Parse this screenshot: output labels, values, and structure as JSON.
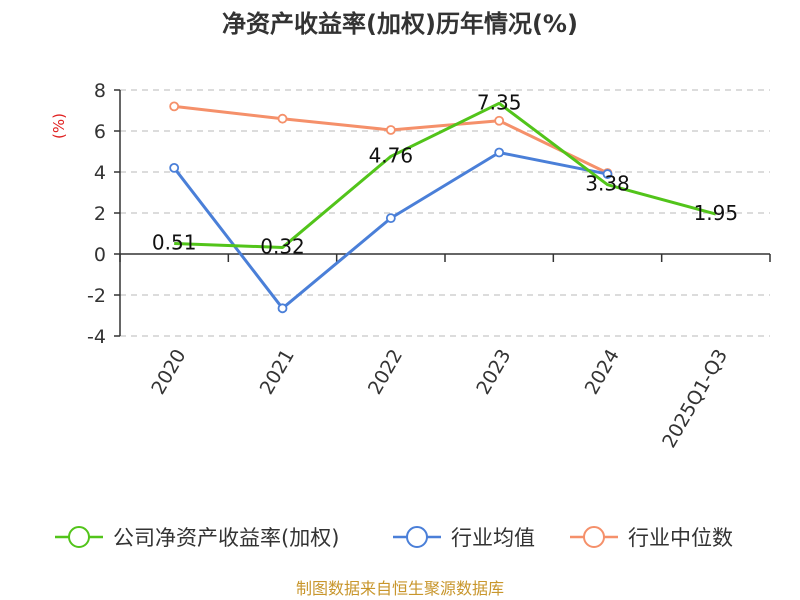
{
  "chart_data": {
    "type": "line",
    "title": "净资产收益率(加权)历年情况(%)",
    "ylabel": "(%)",
    "xlabel": "",
    "categories": [
      "2020",
      "2021",
      "2022",
      "2023",
      "2024",
      "2025Q1-Q3"
    ],
    "y_ticks": [
      "8",
      "6",
      "4",
      "2",
      "0",
      "-2",
      "-4"
    ],
    "ylim": [
      -4,
      8
    ],
    "grid": true,
    "legend_position": "bottom",
    "series": [
      {
        "name": "公司净资产收益率(加权)",
        "color": "#52c41a",
        "values": [
          0.51,
          0.32,
          4.76,
          7.35,
          3.38,
          1.95
        ],
        "labels": [
          "0.51",
          "0.32",
          "4.76",
          "7.35",
          "3.38",
          "1.95"
        ]
      },
      {
        "name": "行业均值",
        "color": "#4a7fd8",
        "values": [
          4.2,
          -2.65,
          1.75,
          4.95,
          3.9,
          null
        ]
      },
      {
        "name": "行业中位数",
        "color": "#f5906a",
        "values": [
          7.2,
          6.6,
          6.05,
          6.5,
          3.95,
          null
        ]
      }
    ]
  },
  "footer": "制图数据来自恒生聚源数据库"
}
